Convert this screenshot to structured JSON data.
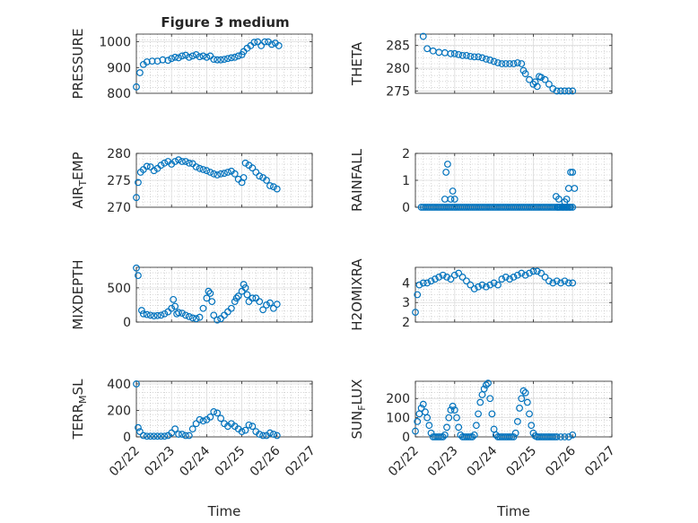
{
  "figure_title": "Figure 3 medium",
  "colors": {
    "marker": "#0072BD",
    "axis": "#262626",
    "grid": "#dcdcdc",
    "minor_grid": "#bdbdbd",
    "background": "#ffffff"
  },
  "chart_data": [
    {
      "type": "scatter",
      "ylabel": "PRESSURE",
      "ylim": [
        800,
        1030
      ],
      "yticks": [
        800,
        900,
        1000
      ],
      "xlim": [
        0,
        5
      ],
      "grid": true,
      "marker": "circle",
      "x": [
        0,
        0.1,
        0.2,
        0.3,
        0.45,
        0.6,
        0.75,
        0.9,
        1.0,
        1.1,
        1.2,
        1.3,
        1.4,
        1.5,
        1.6,
        1.7,
        1.8,
        1.9,
        2.0,
        2.1,
        2.2,
        2.3,
        2.4,
        2.5,
        2.6,
        2.7,
        2.8,
        2.9,
        3.0,
        3.05,
        3.15,
        3.25,
        3.35,
        3.45,
        3.55,
        3.65,
        3.75,
        3.85,
        3.95,
        4.05
      ],
      "values": [
        825,
        880,
        912,
        922,
        925,
        925,
        930,
        928,
        935,
        940,
        938,
        945,
        948,
        940,
        945,
        950,
        942,
        945,
        940,
        945,
        932,
        930,
        930,
        932,
        935,
        938,
        940,
        945,
        950,
        962,
        975,
        985,
        998,
        1000,
        985,
        1000,
        1000,
        990,
        995,
        985
      ]
    },
    {
      "type": "scatter",
      "ylabel": "THETA",
      "ylim": [
        274.5,
        287.5
      ],
      "yticks": [
        275,
        280,
        285
      ],
      "xlim": [
        0,
        5
      ],
      "grid": true,
      "marker": "circle",
      "x": [
        0.2,
        0.3,
        0.45,
        0.6,
        0.75,
        0.9,
        1.0,
        1.1,
        1.2,
        1.3,
        1.4,
        1.5,
        1.6,
        1.7,
        1.8,
        1.9,
        2.0,
        2.1,
        2.2,
        2.3,
        2.4,
        2.5,
        2.6,
        2.7,
        2.75,
        2.8,
        2.9,
        3.0,
        3.05,
        3.1,
        3.15,
        3.2,
        3.3,
        3.4,
        3.5,
        3.6,
        3.7,
        3.8,
        3.9,
        4.0
      ],
      "values": [
        287,
        284.3,
        283.8,
        283.5,
        283.4,
        283.2,
        283.2,
        283,
        282.8,
        282.8,
        282.6,
        282.5,
        282.5,
        282.3,
        282,
        281.8,
        281.5,
        281.2,
        281.0,
        281.0,
        281.0,
        281.0,
        281.2,
        281.0,
        279.5,
        278.8,
        277.5,
        276.5,
        277.0,
        276.0,
        278.2,
        278.0,
        277.5,
        276.5,
        275.5,
        275.0,
        275.0,
        275.0,
        275.0,
        275.0
      ]
    },
    {
      "type": "scatter",
      "ylabel": "AIR_TEMP",
      "ylim": [
        270,
        280
      ],
      "yticks": [
        270,
        275,
        280
      ],
      "xlim": [
        0,
        5
      ],
      "grid": true,
      "marker": "circle",
      "x": [
        0,
        0.05,
        0.12,
        0.2,
        0.3,
        0.4,
        0.5,
        0.6,
        0.7,
        0.8,
        0.9,
        1.0,
        1.1,
        1.2,
        1.3,
        1.4,
        1.5,
        1.6,
        1.7,
        1.8,
        1.9,
        2.0,
        2.1,
        2.2,
        2.3,
        2.4,
        2.5,
        2.6,
        2.7,
        2.8,
        2.9,
        3.0,
        3.05,
        3.1,
        3.2,
        3.3,
        3.4,
        3.5,
        3.6,
        3.7,
        3.8,
        3.9,
        4.0
      ],
      "values": [
        271.8,
        274.6,
        276.5,
        277,
        277.6,
        277.5,
        276.8,
        277.2,
        277.8,
        278.2,
        278.5,
        278,
        278.5,
        278.8,
        278.5,
        278.5,
        278.2,
        278.1,
        277.5,
        277.2,
        277,
        276.8,
        276.5,
        276.2,
        276,
        276.2,
        276.3,
        276.5,
        276.7,
        276.2,
        275.2,
        274.6,
        275.5,
        278.2,
        277.8,
        277.3,
        276.5,
        275.8,
        275.5,
        275,
        274,
        273.8,
        273.4
      ]
    },
    {
      "type": "scatter",
      "ylabel": "RAINFALL",
      "ylim": [
        0,
        2
      ],
      "yticks": [
        0,
        1,
        2
      ],
      "xlim": [
        0,
        5
      ],
      "grid": true,
      "marker": "circle",
      "x": [
        0.15,
        0.2,
        0.25,
        0.3,
        0.35,
        0.4,
        0.45,
        0.5,
        0.55,
        0.6,
        0.65,
        0.7,
        0.75,
        0.8,
        0.85,
        0.9,
        0.95,
        1.0,
        1.05,
        1.1,
        1.15,
        1.2,
        1.25,
        1.3,
        1.35,
        1.4,
        1.45,
        1.5,
        1.55,
        1.6,
        1.65,
        1.7,
        1.75,
        1.8,
        1.85,
        1.9,
        1.95,
        2.0,
        2.05,
        2.1,
        2.15,
        2.2,
        2.25,
        2.3,
        2.35,
        2.4,
        2.45,
        2.5,
        2.55,
        2.6,
        2.65,
        2.7,
        2.75,
        2.8,
        2.85,
        2.9,
        2.95,
        3.0,
        3.05,
        3.1,
        3.15,
        3.2,
        3.25,
        3.3,
        3.35,
        3.4,
        3.45,
        3.5,
        3.55,
        3.6,
        3.62,
        3.65,
        3.68,
        3.72,
        3.75,
        3.78,
        3.82,
        3.85,
        3.88,
        3.92,
        3.95,
        4.0,
        0.75,
        0.78,
        0.82,
        0.9,
        0.95,
        1.0,
        3.58,
        3.65,
        3.8,
        3.85,
        3.9,
        3.95,
        4.0,
        4.05
      ],
      "values": [
        0,
        0,
        0,
        0,
        0,
        0,
        0,
        0,
        0,
        0,
        0,
        0,
        0,
        0,
        0,
        0,
        0,
        0,
        0,
        0,
        0,
        0,
        0,
        0,
        0,
        0,
        0,
        0,
        0,
        0,
        0,
        0,
        0,
        0,
        0,
        0,
        0,
        0,
        0,
        0,
        0,
        0,
        0,
        0,
        0,
        0,
        0,
        0,
        0,
        0,
        0,
        0,
        0,
        0,
        0,
        0,
        0,
        0,
        0,
        0,
        0,
        0,
        0,
        0,
        0,
        0,
        0,
        0,
        0,
        0,
        0,
        0,
        0,
        0,
        0,
        0,
        0,
        0,
        0,
        0,
        0,
        0,
        0.3,
        1.3,
        1.6,
        0.3,
        0.6,
        0.3,
        0.4,
        0.3,
        0.2,
        0.3,
        0.7,
        1.3,
        1.3,
        0.7
      ]
    },
    {
      "type": "scatter",
      "ylabel": "MIXDEPTH",
      "ylim": [
        0,
        800
      ],
      "yticks": [
        0,
        500
      ],
      "xlim": [
        0,
        5
      ],
      "grid": true,
      "marker": "circle",
      "x": [
        0,
        0.05,
        0.15,
        0.2,
        0.3,
        0.4,
        0.5,
        0.6,
        0.7,
        0.8,
        0.9,
        1.0,
        1.05,
        1.1,
        1.15,
        1.2,
        1.3,
        1.4,
        1.5,
        1.6,
        1.7,
        1.8,
        1.9,
        2.0,
        2.05,
        2.1,
        2.15,
        2.2,
        2.3,
        2.4,
        2.5,
        2.6,
        2.7,
        2.8,
        2.85,
        2.9,
        3.0,
        3.05,
        3.1,
        3.15,
        3.2,
        3.3,
        3.4,
        3.5,
        3.6,
        3.7,
        3.8,
        3.9,
        4.0
      ],
      "values": [
        790,
        680,
        170,
        120,
        110,
        100,
        90,
        95,
        100,
        120,
        150,
        200,
        330,
        230,
        120,
        140,
        130,
        100,
        80,
        60,
        50,
        70,
        200,
        350,
        450,
        420,
        300,
        100,
        30,
        50,
        100,
        150,
        200,
        300,
        350,
        380,
        450,
        550,
        500,
        400,
        300,
        350,
        350,
        300,
        180,
        250,
        280,
        200,
        260
      ]
    },
    {
      "type": "scatter",
      "ylabel": "H2OMIXRA",
      "ylim": [
        2,
        4.8
      ],
      "yticks": [
        2,
        3,
        4
      ],
      "xlim": [
        0,
        5
      ],
      "grid": true,
      "marker": "circle",
      "x": [
        0,
        0.05,
        0.1,
        0.2,
        0.3,
        0.4,
        0.5,
        0.6,
        0.7,
        0.8,
        0.9,
        1.0,
        1.1,
        1.2,
        1.3,
        1.4,
        1.5,
        1.6,
        1.7,
        1.8,
        1.9,
        2.0,
        2.1,
        2.2,
        2.3,
        2.4,
        2.5,
        2.6,
        2.7,
        2.8,
        2.9,
        3.0,
        3.1,
        3.2,
        3.3,
        3.4,
        3.5,
        3.6,
        3.7,
        3.8,
        3.9,
        4.0
      ],
      "values": [
        2.5,
        3.4,
        3.9,
        4.0,
        4.0,
        4.1,
        4.2,
        4.3,
        4.4,
        4.3,
        4.2,
        4.4,
        4.5,
        4.3,
        4.1,
        3.9,
        3.7,
        3.8,
        3.9,
        3.8,
        3.9,
        4.0,
        3.9,
        4.2,
        4.3,
        4.2,
        4.3,
        4.4,
        4.5,
        4.4,
        4.5,
        4.6,
        4.6,
        4.5,
        4.3,
        4.1,
        4.0,
        4.1,
        4.0,
        4.1,
        4.0,
        4.0
      ]
    },
    {
      "type": "scatter",
      "ylabel": "TERR_MSL",
      "ylim": [
        0,
        420
      ],
      "yticks": [
        0,
        200,
        400
      ],
      "xlim": [
        0,
        5
      ],
      "grid": true,
      "marker": "circle",
      "x": [
        0,
        0.05,
        0.1,
        0.2,
        0.3,
        0.4,
        0.5,
        0.6,
        0.7,
        0.8,
        0.9,
        1.0,
        1.1,
        1.2,
        1.3,
        1.4,
        1.5,
        1.6,
        1.7,
        1.8,
        1.9,
        2.0,
        2.1,
        2.2,
        2.3,
        2.4,
        2.5,
        2.6,
        2.7,
        2.8,
        2.9,
        3.0,
        3.1,
        3.2,
        3.3,
        3.4,
        3.5,
        3.6,
        3.7,
        3.8,
        3.9,
        4.0
      ],
      "values": [
        400,
        70,
        40,
        10,
        5,
        5,
        5,
        5,
        5,
        5,
        10,
        30,
        60,
        20,
        20,
        10,
        10,
        60,
        100,
        130,
        120,
        130,
        150,
        190,
        180,
        140,
        100,
        80,
        100,
        80,
        60,
        40,
        50,
        90,
        80,
        40,
        20,
        10,
        10,
        30,
        20,
        10
      ]
    },
    {
      "type": "scatter",
      "ylabel": "SUN_FLUX",
      "ylim": [
        0,
        290
      ],
      "yticks": [
        0,
        100,
        200
      ],
      "xlim": [
        0,
        5
      ],
      "grid": true,
      "marker": "circle",
      "x": [
        0,
        0.05,
        0.1,
        0.15,
        0.2,
        0.25,
        0.3,
        0.35,
        0.4,
        0.45,
        0.5,
        0.55,
        0.6,
        0.65,
        0.7,
        0.75,
        0.8,
        0.85,
        0.9,
        0.95,
        1.0,
        1.05,
        1.1,
        1.15,
        1.2,
        1.25,
        1.3,
        1.35,
        1.4,
        1.45,
        1.5,
        1.55,
        1.6,
        1.65,
        1.7,
        1.75,
        1.8,
        1.85,
        1.9,
        1.95,
        2.0,
        2.05,
        2.1,
        2.15,
        2.2,
        2.25,
        2.3,
        2.35,
        2.4,
        2.45,
        2.5,
        2.55,
        2.6,
        2.65,
        2.7,
        2.75,
        2.8,
        2.85,
        2.9,
        2.95,
        3.0,
        3.05,
        3.1,
        3.15,
        3.2,
        3.25,
        3.3,
        3.35,
        3.4,
        3.45,
        3.5,
        3.55,
        3.6,
        3.7,
        3.8,
        3.9,
        4.0
      ],
      "values": [
        30,
        80,
        120,
        150,
        170,
        130,
        100,
        60,
        20,
        0,
        0,
        0,
        0,
        0,
        0,
        10,
        50,
        100,
        140,
        160,
        140,
        100,
        50,
        10,
        0,
        0,
        0,
        0,
        0,
        0,
        10,
        60,
        120,
        180,
        220,
        250,
        270,
        280,
        200,
        120,
        40,
        10,
        0,
        0,
        0,
        0,
        0,
        0,
        0,
        0,
        0,
        20,
        80,
        150,
        200,
        240,
        230,
        180,
        120,
        60,
        20,
        5,
        0,
        0,
        0,
        0,
        0,
        0,
        0,
        0,
        0,
        0,
        0,
        0,
        0,
        0,
        10
      ]
    }
  ],
  "x_tick_labels": [
    "02/22",
    "02/23",
    "02/24",
    "02/25",
    "02/26",
    "02/27"
  ],
  "x_label": "Time"
}
